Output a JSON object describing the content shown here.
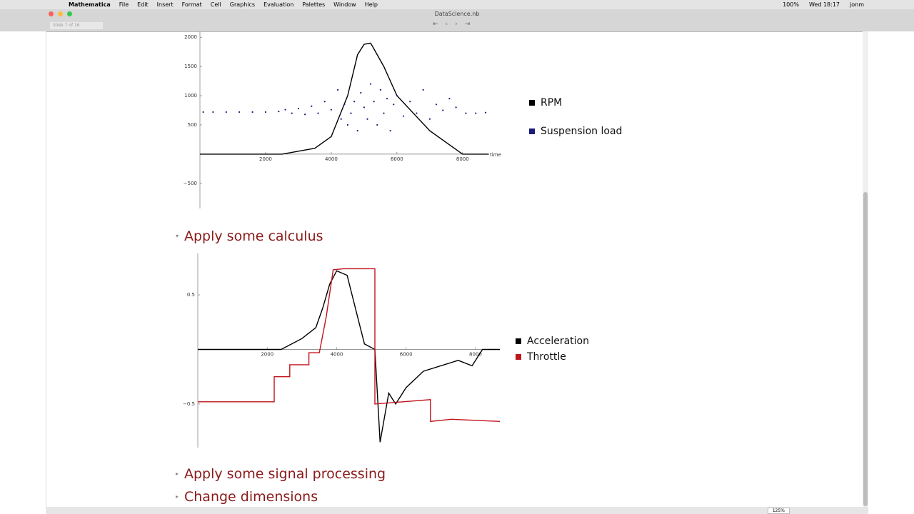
{
  "menubar": {
    "app": "Mathematica",
    "menus": [
      "File",
      "Edit",
      "Insert",
      "Format",
      "Cell",
      "Graphics",
      "Evaluation",
      "Palettes",
      "Window",
      "Help"
    ],
    "battery": "100%",
    "clock": "Wed 18:17",
    "user": "jonm"
  },
  "window": {
    "title": "DataScience.nb",
    "slide": "Slide 7 of 16",
    "zoom": "125%"
  },
  "sections": [
    "Apply some calculus",
    "Apply some signal processing",
    "Change dimensions"
  ],
  "chart_data": [
    {
      "type": "line",
      "x_label": "time",
      "xlim": [
        0,
        8700
      ],
      "ylim": [
        -930,
        2100
      ],
      "xticks": [
        2000,
        4000,
        6000,
        8000
      ],
      "yticks": [
        {
          "value": -500,
          "label": "−500"
        },
        500,
        1000,
        1500,
        2000
      ],
      "series": [
        {
          "name": "RPM",
          "color": "#000000",
          "style": "line",
          "x": [
            0,
            2500,
            3500,
            4000,
            4500,
            4800,
            5000,
            5200,
            5600,
            6000,
            7000,
            8000,
            8800
          ],
          "values": [
            0,
            0,
            100,
            300,
            1000,
            1700,
            1880,
            1900,
            1500,
            1000,
            400,
            0,
            0
          ]
        },
        {
          "name": "Suspension load",
          "color": "#1a1a7a",
          "style": "points",
          "x": [
            100,
            400,
            800,
            1200,
            1600,
            2000,
            2400,
            2600,
            2800,
            3000,
            3200,
            3400,
            3600,
            3800,
            4000,
            4200,
            4300,
            4400,
            4500,
            4600,
            4700,
            4800,
            4900,
            5000,
            5100,
            5200,
            5300,
            5400,
            5500,
            5600,
            5700,
            5800,
            5900,
            6000,
            6200,
            6400,
            6600,
            6800,
            7000,
            7200,
            7400,
            7600,
            7800,
            8100,
            8400,
            8700
          ],
          "values": [
            720,
            720,
            720,
            720,
            720,
            720,
            730,
            760,
            700,
            780,
            680,
            820,
            700,
            900,
            760,
            1100,
            600,
            850,
            500,
            700,
            900,
            400,
            1050,
            800,
            600,
            1200,
            900,
            500,
            1100,
            700,
            950,
            400,
            850,
            1000,
            650,
            900,
            700,
            1100,
            600,
            850,
            750,
            950,
            800,
            700,
            700,
            710
          ]
        }
      ]
    },
    {
      "type": "line",
      "xlim": [
        0,
        8700
      ],
      "ylim": [
        -0.9,
        0.88
      ],
      "xticks": [
        2000,
        4000,
        6000,
        8000
      ],
      "yticks": [
        {
          "value": -0.5,
          "label": "−0.5"
        },
        0.5
      ],
      "series": [
        {
          "name": "Acceleration",
          "color": "#000000",
          "style": "line",
          "x": [
            0,
            2400,
            3000,
            3400,
            3600,
            3800,
            4000,
            4300,
            4600,
            4800,
            5100,
            5250,
            5500,
            5700,
            6000,
            6500,
            7500,
            7900,
            8200,
            8700
          ],
          "values": [
            0,
            0,
            0.1,
            0.2,
            0.38,
            0.6,
            0.72,
            0.68,
            0.3,
            0.05,
            0,
            -0.85,
            -0.4,
            -0.5,
            -0.35,
            -0.2,
            -0.1,
            -0.15,
            0,
            0
          ]
        },
        {
          "name": "Throttle",
          "color": "#c0141c",
          "style": "line",
          "x": [
            0,
            2200,
            2200,
            2650,
            2650,
            3200,
            3200,
            3500,
            3700,
            3900,
            4200,
            5100,
            5100,
            6700,
            6700,
            7300,
            8700
          ],
          "values": [
            -0.48,
            -0.48,
            -0.25,
            -0.25,
            -0.14,
            -0.14,
            -0.03,
            -0.03,
            0.3,
            0.73,
            0.74,
            0.74,
            -0.5,
            -0.46,
            -0.66,
            -0.64,
            -0.66
          ]
        }
      ]
    }
  ]
}
